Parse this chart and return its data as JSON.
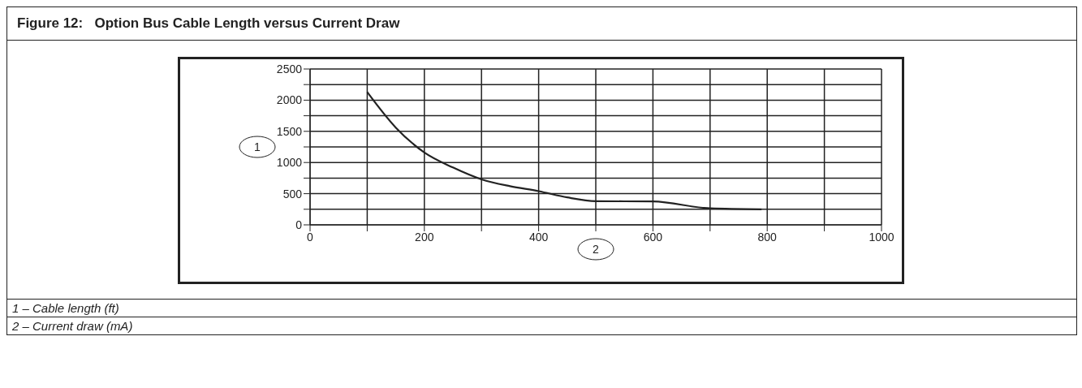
{
  "chart_data": {
    "type": "line",
    "title": "Figure 12:   Option Bus Cable Length versus Current Draw",
    "xlabel": "2",
    "ylabel": "1",
    "annotations": [
      "1 – Cable length (ft)",
      "2 – Current draw (mA)"
    ],
    "series": [
      {
        "color": "#222222",
        "x": [
          100,
          150,
          200,
          250,
          300,
          350,
          400,
          450,
          500,
          600,
          700,
          790
        ],
        "values": [
          2130,
          1560,
          1160,
          920,
          730,
          620,
          540,
          440,
          380,
          375,
          265,
          250
        ]
      }
    ],
    "xlim": [
      0,
      1000
    ],
    "xticks": [
      0,
      {
        "value": 100,
        "label": null
      },
      200,
      {
        "value": 300,
        "label": null
      },
      400,
      {
        "value": 500,
        "label": null
      },
      600,
      {
        "value": 700,
        "label": null
      },
      800,
      {
        "value": 900,
        "label": null
      },
      1000
    ],
    "ylim": [
      0,
      2500
    ],
    "yticks": [
      0,
      {
        "value": 250,
        "label": null
      },
      500,
      {
        "value": 750,
        "label": null
      },
      1000,
      {
        "value": 1250,
        "label": null
      },
      1500,
      {
        "value": 1750,
        "label": null
      },
      2000,
      {
        "value": 2250,
        "label": null
      },
      2500
    ],
    "grid": true,
    "marker": "none",
    "line_style": "solid",
    "legend": false
  }
}
